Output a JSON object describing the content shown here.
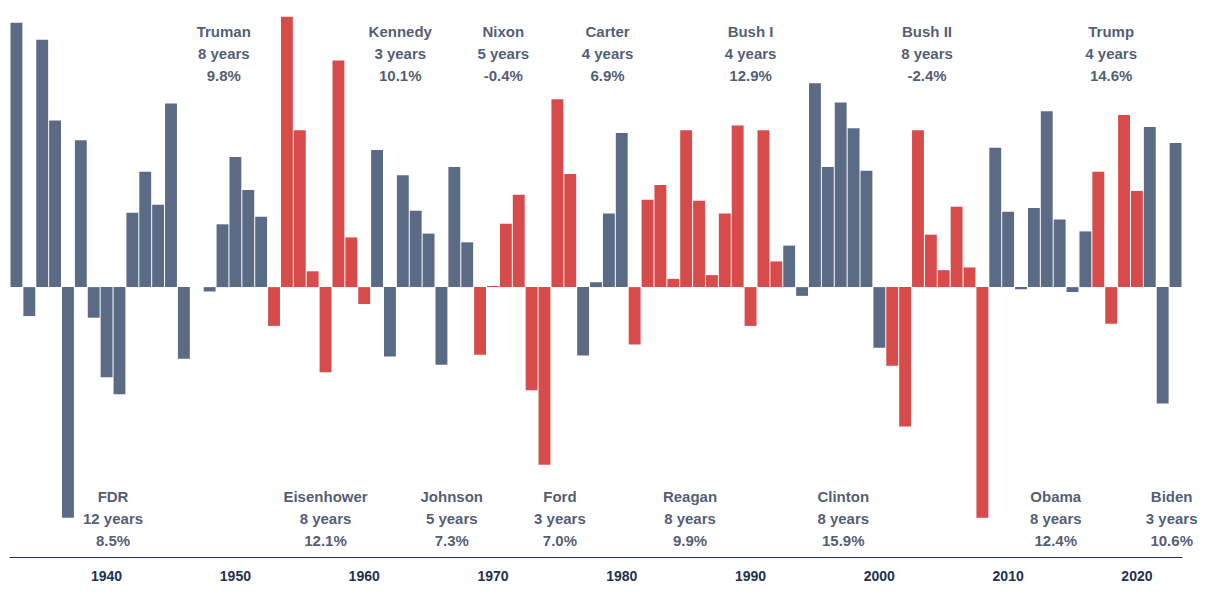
{
  "chart_data": {
    "type": "bar",
    "x": [
      1933,
      1934,
      1935,
      1936,
      1937,
      1938,
      1939,
      1940,
      1941,
      1942,
      1943,
      1944,
      1945,
      1946,
      1947,
      1948,
      1949,
      1950,
      1951,
      1952,
      1953,
      1954,
      1955,
      1956,
      1957,
      1958,
      1959,
      1960,
      1961,
      1962,
      1963,
      1964,
      1965,
      1966,
      1967,
      1968,
      1969,
      1970,
      1971,
      1972,
      1973,
      1974,
      1975,
      1976,
      1977,
      1978,
      1979,
      1980,
      1981,
      1982,
      1983,
      1984,
      1985,
      1986,
      1987,
      1988,
      1989,
      1990,
      1991,
      1992,
      1993,
      1994,
      1995,
      1996,
      1997,
      1998,
      1999,
      2000,
      2001,
      2002,
      2003,
      2004,
      2005,
      2006,
      2007,
      2008,
      2009,
      2010,
      2011,
      2012,
      2013,
      2014,
      2015,
      2016,
      2017,
      2018,
      2019,
      2020,
      2021,
      2022,
      2023
    ],
    "values": [
      48.4,
      -5.3,
      45.3,
      30.5,
      -42.2,
      26.9,
      -5.6,
      -16.5,
      -19.6,
      13.6,
      21.1,
      15.1,
      33.6,
      -13.1,
      0,
      -0.8,
      11.5,
      23.8,
      17.8,
      12.9,
      -7.1,
      49.5,
      28.7,
      2.9,
      -15.6,
      41.5,
      9.1,
      -3.1,
      25.1,
      -12.7,
      20.5,
      14.0,
      9.8,
      -14.2,
      22.0,
      8.2,
      -12.4,
      0.2,
      11.6,
      16.9,
      -18.9,
      -32.5,
      34.4,
      20.7,
      -12.5,
      0.9,
      13.5,
      28.2,
      -10.5,
      16.0,
      18.7,
      1.5,
      28.7,
      15.8,
      2.2,
      13.5,
      29.6,
      -7.1,
      28.7,
      4.7,
      7.6,
      -1.6,
      37.3,
      22.0,
      33.8,
      29.1,
      21.3,
      -11.1,
      -14.4,
      -25.5,
      28.7,
      9.6,
      3.1,
      14.7,
      3.6,
      -42.2,
      25.5,
      13.8,
      -0.4,
      14.5,
      32.2,
      12.4,
      -0.9,
      10.2,
      21.1,
      -6.7,
      31.5,
      17.6,
      29.3,
      -21.3,
      26.4
    ],
    "colors": [
      "#5b6b85",
      "#5b6b85",
      "#5b6b85",
      "#5b6b85",
      "#5b6b85",
      "#5b6b85",
      "#5b6b85",
      "#5b6b85",
      "#5b6b85",
      "#5b6b85",
      "#5b6b85",
      "#5b6b85",
      "#5b6b85",
      "#5b6b85",
      "#5b6b85",
      "#5b6b85",
      "#5b6b85",
      "#5b6b85",
      "#5b6b85",
      "#5b6b85",
      "#d84b4b",
      "#d84b4b",
      "#d84b4b",
      "#d84b4b",
      "#d84b4b",
      "#d84b4b",
      "#d84b4b",
      "#d84b4b",
      "#5b6b85",
      "#5b6b85",
      "#5b6b85",
      "#5b6b85",
      "#5b6b85",
      "#5b6b85",
      "#5b6b85",
      "#5b6b85",
      "#d84b4b",
      "#d84b4b",
      "#d84b4b",
      "#d84b4b",
      "#d84b4b",
      "#d84b4b",
      "#d84b4b",
      "#d84b4b",
      "#5b6b85",
      "#5b6b85",
      "#5b6b85",
      "#5b6b85",
      "#d84b4b",
      "#d84b4b",
      "#d84b4b",
      "#d84b4b",
      "#d84b4b",
      "#d84b4b",
      "#d84b4b",
      "#d84b4b",
      "#d84b4b",
      "#d84b4b",
      "#d84b4b",
      "#d84b4b",
      "#5b6b85",
      "#5b6b85",
      "#5b6b85",
      "#5b6b85",
      "#5b6b85",
      "#5b6b85",
      "#5b6b85",
      "#5b6b85",
      "#d84b4b",
      "#d84b4b",
      "#d84b4b",
      "#d84b4b",
      "#d84b4b",
      "#d84b4b",
      "#d84b4b",
      "#d84b4b",
      "#5b6b85",
      "#5b6b85",
      "#5b6b85",
      "#5b6b85",
      "#5b6b85",
      "#5b6b85",
      "#5b6b85",
      "#5b6b85",
      "#d84b4b",
      "#d84b4b",
      "#d84b4b",
      "#d84b4b",
      "#5b6b85",
      "#5b6b85",
      "#5b6b85"
    ],
    "xlim": [
      1932.5,
      2023.5
    ],
    "xticks": [
      1940,
      1950,
      1960,
      1970,
      1980,
      1990,
      2000,
      2010,
      2020
    ],
    "ylim": [
      -43,
      50
    ],
    "tick_labels": "x",
    "grid": false,
    "annotations": [
      {
        "lines": [
          "FDR",
          "12 years",
          "8.5%"
        ],
        "x": 1940.5,
        "y": -42.3
      },
      {
        "lines": [
          "Truman",
          "8 years",
          "9.8%"
        ],
        "x": 1949.1,
        "y": 42.8
      },
      {
        "lines": [
          "Eisenhower",
          "8 years",
          "12.1%"
        ],
        "x": 1957.0,
        "y": -42.3
      },
      {
        "lines": [
          "Kennedy",
          "3 years",
          "10.1%"
        ],
        "x": 1962.8,
        "y": 42.8
      },
      {
        "lines": [
          "Johnson",
          "5 years",
          "7.3%"
        ],
        "x": 1966.8,
        "y": -42.3
      },
      {
        "lines": [
          "Nixon",
          "5 years",
          "-0.4%"
        ],
        "x": 1970.8,
        "y": 42.8
      },
      {
        "lines": [
          "Ford",
          "3 years",
          "7.0%"
        ],
        "x": 1975.2,
        "y": -42.3
      },
      {
        "lines": [
          "Carter",
          "4 years",
          "6.9%"
        ],
        "x": 1978.9,
        "y": 42.8
      },
      {
        "lines": [
          "Reagan",
          "8 years",
          "9.9%"
        ],
        "x": 1985.3,
        "y": -42.3
      },
      {
        "lines": [
          "Bush I",
          "4 years",
          "12.9%"
        ],
        "x": 1990.0,
        "y": 42.8
      },
      {
        "lines": [
          "Clinton",
          "8 years",
          "15.9%"
        ],
        "x": 1997.2,
        "y": -42.3
      },
      {
        "lines": [
          "Bush II",
          "8 years",
          "-2.4%"
        ],
        "x": 2003.7,
        "y": 42.8
      },
      {
        "lines": [
          "Obama",
          "8 years",
          "12.4%"
        ],
        "x": 2013.7,
        "y": -42.3
      },
      {
        "lines": [
          "Trump",
          "4 years",
          "14.6%"
        ],
        "x": 2018.0,
        "y": 42.8
      },
      {
        "lines": [
          "Biden",
          "3 years",
          "10.6%"
        ],
        "x": 2022.7,
        "y": -42.3
      }
    ]
  }
}
